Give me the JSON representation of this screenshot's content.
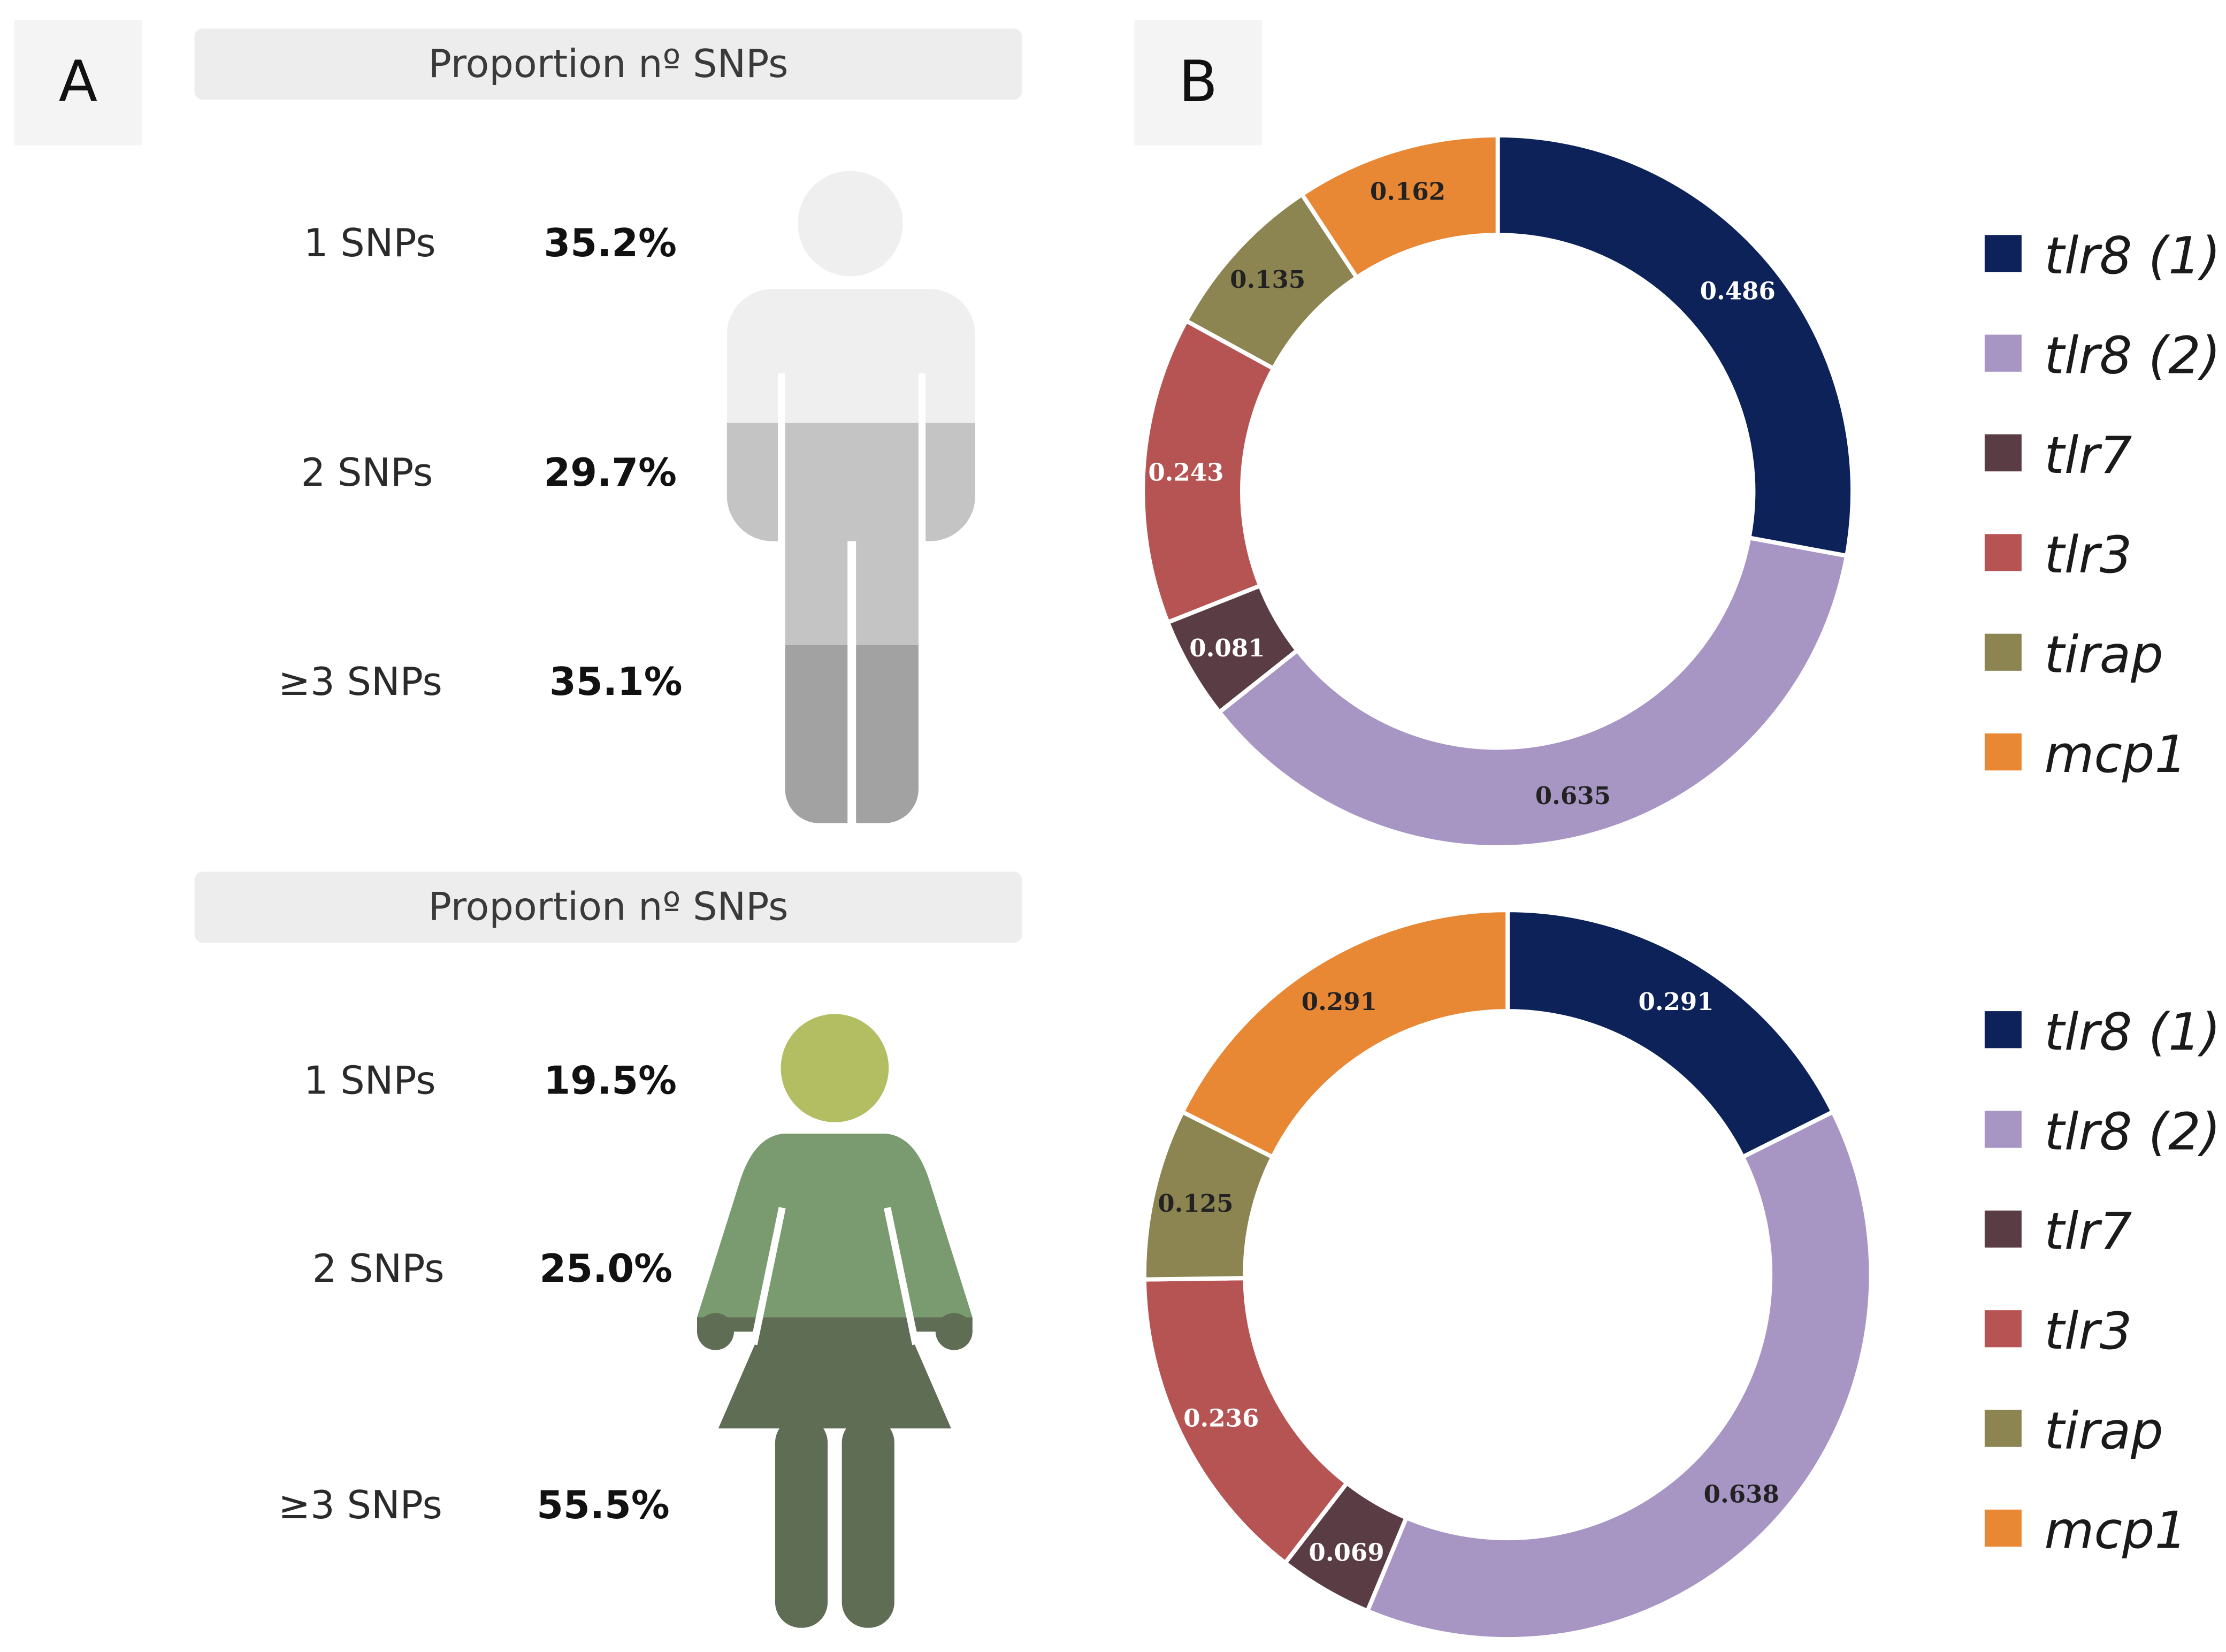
{
  "panel_a": {
    "letter": "A",
    "male": {
      "header": "Proportion nº SNPs",
      "rows": [
        {
          "label": "1 SNPs",
          "value": "35.2%"
        },
        {
          "label": "2 SNPs",
          "value": "29.7%"
        },
        {
          "label": "≥3 SNPs",
          "value": "35.1%"
        }
      ]
    },
    "female": {
      "header": "Proportion nº SNPs",
      "rows": [
        {
          "label": "1 SNPs",
          "value": "19.5%"
        },
        {
          "label": "2 SNPs",
          "value": "25.0%"
        },
        {
          "label": "≥3 SNPs",
          "value": "55.5%"
        }
      ]
    }
  },
  "panel_b": {
    "letter": "B"
  },
  "colors": {
    "tlr8_1": "#0c2259",
    "tlr8_2": "#a795c4",
    "tlr7": "#5a3c44",
    "tlr3": "#b65454",
    "tirap": "#8c8552",
    "mcp1": "#e88734"
  },
  "chart_data": [
    {
      "type": "pie",
      "title": "",
      "legend": [
        "tlr8 (1)",
        "tlr8 (2)",
        "tlr7",
        "tlr3",
        "tirap",
        "mcp1"
      ],
      "categories": [
        "tlr8 (1)",
        "tlr8 (2)",
        "tlr7",
        "tlr3",
        "tirap",
        "mcp1"
      ],
      "values": [
        0.486,
        0.635,
        0.081,
        0.243,
        0.135,
        0.162
      ],
      "value_labels": [
        "0.486",
        "0.635",
        "0.081",
        "0.243",
        "0.135",
        "0.162"
      ]
    },
    {
      "type": "pie",
      "title": "",
      "legend": [
        "tlr8 (1)",
        "tlr8 (2)",
        "tlr7",
        "tlr3",
        "tirap",
        "mcp1"
      ],
      "categories": [
        "tlr8 (1)",
        "tlr8 (2)",
        "tlr7",
        "tlr3",
        "tirap",
        "mcp1"
      ],
      "values": [
        0.291,
        0.638,
        0.069,
        0.236,
        0.125,
        0.291
      ],
      "value_labels": [
        "0.291",
        "0.638",
        "0.069",
        "0.236",
        "0.125",
        "0.291"
      ]
    }
  ]
}
